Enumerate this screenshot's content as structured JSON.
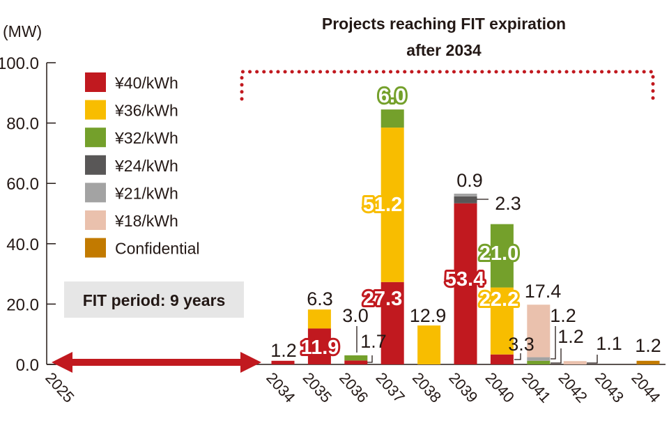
{
  "chart_data": {
    "type": "bar",
    "stacked": true,
    "title": "Projects reaching FIT expiration after 2034",
    "title_lines": [
      "Projects reaching FIT expiration",
      "after 2034"
    ],
    "ylabel": "(MW)",
    "ylim": [
      0,
      100
    ],
    "yticks": [
      "0.0",
      "20.0",
      "40.0",
      "60.0",
      "80.0",
      "100.0"
    ],
    "axis_start_label": "2025",
    "categories": [
      "2034",
      "2035",
      "2036",
      "2037",
      "2038",
      "2039",
      "2040",
      "2041",
      "2042",
      "2043",
      "2044"
    ],
    "series": [
      {
        "name": "¥40/kWh",
        "color": "#c1191f",
        "values": [
          1.2,
          11.9,
          1.3,
          27.3,
          0,
          53.4,
          3.3,
          0,
          0,
          0,
          0
        ]
      },
      {
        "name": "¥36/kWh",
        "color": "#f8bd00",
        "values": [
          0,
          6.3,
          0,
          51.2,
          12.9,
          0,
          22.2,
          0,
          0,
          0,
          0
        ]
      },
      {
        "name": "¥32/kWh",
        "color": "#74a02b",
        "values": [
          0,
          0,
          1.7,
          6.0,
          0,
          0,
          21.0,
          1.2,
          0,
          0,
          0
        ]
      },
      {
        "name": "¥24/kWh",
        "color": "#595757",
        "values": [
          0,
          0,
          0,
          0,
          0,
          2.3,
          0,
          0,
          0,
          0,
          0
        ]
      },
      {
        "name": "¥21/kWh",
        "color": "#a3a3a3",
        "values": [
          0,
          0,
          0,
          0,
          0,
          0.9,
          0,
          1.2,
          0,
          0,
          0
        ]
      },
      {
        "name": "¥18/kWh",
        "color": "#eac1ad",
        "values": [
          0,
          0,
          0,
          0,
          0,
          0,
          0,
          17.4,
          1.1,
          0,
          0
        ]
      },
      {
        "name": "Confidential",
        "color": "#c27a00",
        "values": [
          0,
          0,
          0,
          0,
          0,
          0,
          0,
          0,
          0,
          0,
          1.2
        ]
      }
    ],
    "annotations": {
      "fit_period": "FIT period: 9 years",
      "total_2036": "3.0"
    },
    "arrow_color": "#c1191f",
    "legend_position": "left",
    "grid": false
  }
}
